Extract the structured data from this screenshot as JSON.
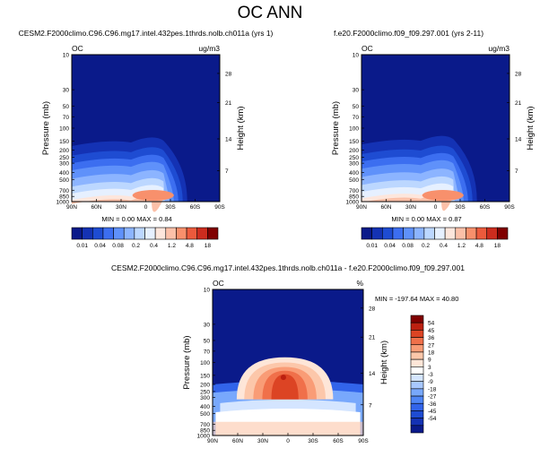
{
  "figure": {
    "title": "OC ANN"
  },
  "colors": {
    "abs_scale": [
      "#0a1a8a",
      "#1432b4",
      "#1e4cd2",
      "#3c6ef0",
      "#5f91fa",
      "#8cb4ff",
      "#bcd7ff",
      "#e6f0ff",
      "#fde6dc",
      "#fcc0a8",
      "#f8906c",
      "#ec5a3c",
      "#cc2c1e",
      "#800000"
    ],
    "diff_scale": [
      "#0a1a8a",
      "#1432b4",
      "#1e4cd2",
      "#3264ea",
      "#4f86f6",
      "#78a8fc",
      "#a8c8ff",
      "#d4e5ff",
      "#ffffff",
      "#fee6d8",
      "#fcc7aa",
      "#f99c76",
      "#f0704a",
      "#dc4424",
      "#bc2010",
      "#800000"
    ]
  },
  "chart_data": [
    {
      "type": "heatmap",
      "panel": "top-left",
      "title": "CESM2.F2000climo.C96.C96.mg17.intel.432pes.1thrds.nolb.ch011a (yrs 1)",
      "left_label": "OC",
      "units": "ug/m3",
      "ylabel": "Pressure (mb)",
      "y2label": "Height (km)",
      "x_ticks": [
        "90N",
        "60N",
        "30N",
        "0",
        "30S",
        "60S",
        "90S"
      ],
      "y_ticks": [
        "10",
        "30",
        "50",
        "70",
        "100",
        "150",
        "200",
        "250",
        "300",
        "400",
        "500",
        "700",
        "850",
        "1000"
      ],
      "y2_ticks": [
        "28",
        "21",
        "14",
        "7"
      ],
      "min_max": "MIN =  0.00  MAX =  0.84",
      "ylim": [
        10,
        1000
      ],
      "xlim": [
        90,
        -90
      ],
      "scale": "log-pressure"
    },
    {
      "type": "heatmap",
      "panel": "top-right",
      "title": "f.e20.F2000climo.f09_f09.297.001 (yrs 2-11)",
      "left_label": "OC",
      "units": "ug/m3",
      "ylabel": "Pressure (mb)",
      "y2label": "Height (km)",
      "x_ticks": [
        "90N",
        "60N",
        "30N",
        "0",
        "30S",
        "60S",
        "90S"
      ],
      "y_ticks": [
        "10",
        "30",
        "50",
        "70",
        "100",
        "150",
        "200",
        "250",
        "300",
        "400",
        "500",
        "700",
        "850",
        "1000"
      ],
      "y2_ticks": [
        "28",
        "21",
        "14",
        "7"
      ],
      "min_max": "MIN =  0.00  MAX =  0.87",
      "ylim": [
        10,
        1000
      ],
      "xlim": [
        90,
        -90
      ],
      "scale": "log-pressure"
    },
    {
      "type": "heatmap",
      "panel": "bottom",
      "title": "CESM2.F2000climo.C96.C96.mg17.intel.432pes.1thrds.nolb.ch011a - f.e20.F2000climo.f09_f09.297.001",
      "left_label": "OC",
      "units": "%",
      "ylabel": "Pressure (mb)",
      "y2label": "Height (km)",
      "x_ticks": [
        "90N",
        "60N",
        "30N",
        "0",
        "30S",
        "60S",
        "90S"
      ],
      "y_ticks": [
        "10",
        "30",
        "50",
        "70",
        "100",
        "150",
        "200",
        "250",
        "300",
        "400",
        "500",
        "700",
        "850",
        "1000"
      ],
      "y2_ticks": [
        "28",
        "21",
        "14",
        "7"
      ],
      "min_max": "MIN = -197.64  MAX =  40.80",
      "ylim": [
        10,
        1000
      ],
      "xlim": [
        90,
        -90
      ],
      "scale": "log-pressure"
    }
  ],
  "legends": {
    "abs_labels": [
      "0.01",
      "0.04",
      "0.08",
      "0.2",
      "0.4",
      "1.2",
      "4.8",
      "18"
    ],
    "diff_labels": [
      "54",
      "45",
      "36",
      "27",
      "18",
      "9",
      "3",
      "-3",
      "-9",
      "-18",
      "-27",
      "-36",
      "-45",
      "-54"
    ]
  }
}
